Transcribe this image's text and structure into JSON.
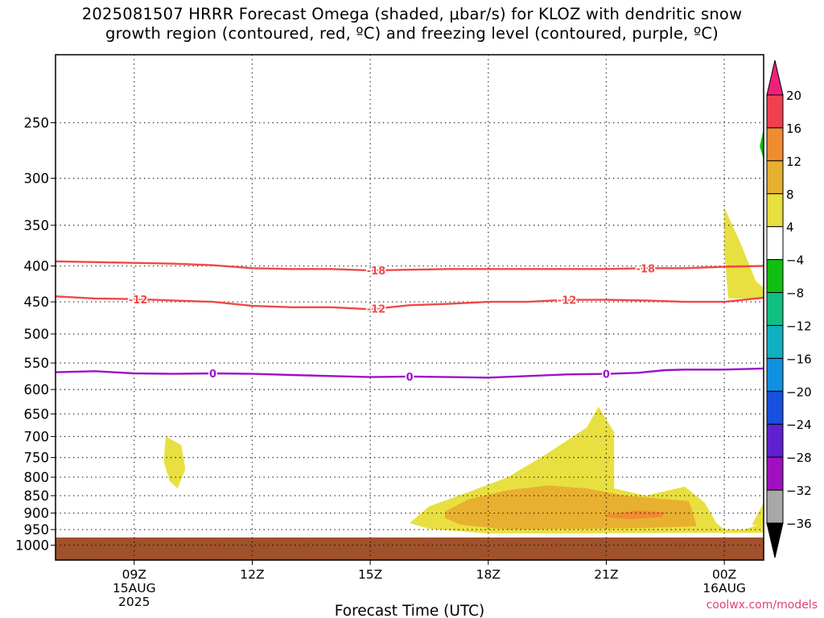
{
  "title": {
    "line1": "2025081507 HRRR Forecast Omega (shaded, μbar/s) for KLOZ with dendritic snow",
    "line2": "growth region (contoured, red, ºC) and freezing level (contoured, purple, ºC)"
  },
  "credit": "coolwx.com/models",
  "chart_data": {
    "type": "contour",
    "xlabel": "Forecast Time (UTC)",
    "x_range_hours": [
      7,
      25
    ],
    "x_ticks": [
      {
        "hour": 9,
        "label": "09Z",
        "sub": [
          "15AUG",
          "2025"
        ]
      },
      {
        "hour": 12,
        "label": "12Z",
        "sub": []
      },
      {
        "hour": 15,
        "label": "15Z",
        "sub": []
      },
      {
        "hour": 18,
        "label": "18Z",
        "sub": []
      },
      {
        "hour": 21,
        "label": "21Z",
        "sub": []
      },
      {
        "hour": 24,
        "label": "00Z",
        "sub": [
          "16AUG"
        ]
      }
    ],
    "y_axis": "pressure (hPa)",
    "y_scale": "log",
    "y_range": [
      1050,
      200
    ],
    "y_ticks": [
      250,
      300,
      350,
      400,
      450,
      500,
      550,
      600,
      650,
      700,
      750,
      800,
      850,
      900,
      950,
      1000
    ],
    "grid": "dotted",
    "ground_color": "#a0522d",
    "ground_top_hpa": 975,
    "colorbar": {
      "levels": [
        20,
        16,
        12,
        8,
        4,
        -4,
        -8,
        -12,
        -16,
        -20,
        -24,
        -28,
        -32,
        -36
      ],
      "colors": [
        "#f0207a",
        "#f04050",
        "#f08c30",
        "#e8b030",
        "#e8e040",
        "#ffffff",
        "#10c010",
        "#10c080",
        "#10b0c0",
        "#1090e0",
        "#1850e0",
        "#6020d0",
        "#a010c0",
        "#a8a8a8",
        "#000000"
      ]
    },
    "contours": [
      {
        "label": "-18",
        "color": "#f04848",
        "points": [
          [
            7,
            394
          ],
          [
            9,
            396
          ],
          [
            10,
            397
          ],
          [
            11,
            399
          ],
          [
            12,
            403
          ],
          [
            13,
            404
          ],
          [
            14,
            404
          ],
          [
            15,
            406
          ],
          [
            16,
            405
          ],
          [
            17,
            404
          ],
          [
            18,
            404
          ],
          [
            19,
            404
          ],
          [
            20,
            404
          ],
          [
            21,
            404
          ],
          [
            22,
            403
          ],
          [
            23,
            403
          ],
          [
            24,
            401
          ],
          [
            25,
            400
          ]
        ],
        "label_hours": [
          15.15,
          22.0
        ]
      },
      {
        "label": "-12",
        "color": "#f04848",
        "points": [
          [
            7,
            442
          ],
          [
            8,
            445
          ],
          [
            9,
            446
          ],
          [
            10,
            448
          ],
          [
            11,
            450
          ],
          [
            12,
            456
          ],
          [
            13,
            458
          ],
          [
            14,
            458
          ],
          [
            15,
            461
          ],
          [
            16,
            455
          ],
          [
            17,
            453
          ],
          [
            18,
            450
          ],
          [
            19,
            450
          ],
          [
            20,
            447
          ],
          [
            21,
            447
          ],
          [
            22,
            448
          ],
          [
            23,
            450
          ],
          [
            24,
            450
          ],
          [
            25,
            444
          ]
        ],
        "label_hours": [
          9.1,
          15.15,
          20.0
        ]
      },
      {
        "label": "0",
        "color": "#9e10c8",
        "points": [
          [
            7,
            567
          ],
          [
            8,
            565
          ],
          [
            9,
            569
          ],
          [
            10,
            570
          ],
          [
            11,
            569
          ],
          [
            12,
            570
          ],
          [
            13,
            572
          ],
          [
            14,
            574
          ],
          [
            15,
            576
          ],
          [
            16,
            575
          ],
          [
            17,
            576
          ],
          [
            18,
            577
          ],
          [
            19,
            574
          ],
          [
            20,
            571
          ],
          [
            21,
            570
          ],
          [
            21.8,
            568
          ],
          [
            22.5,
            563
          ],
          [
            23,
            562
          ],
          [
            24,
            562
          ],
          [
            25,
            560
          ]
        ],
        "label_hours": [
          11.0,
          16.0,
          21.0
        ]
      }
    ],
    "shaded_regions": [
      {
        "color": "#e8e040",
        "points": [
          [
            9.8,
            700
          ],
          [
            10.2,
            720
          ],
          [
            10.3,
            780
          ],
          [
            10.1,
            830
          ],
          [
            9.9,
            810
          ],
          [
            9.75,
            760
          ]
        ]
      },
      {
        "color": "#e8e040",
        "points": [
          [
            16.0,
            930
          ],
          [
            16.5,
            880
          ],
          [
            17.5,
            840
          ],
          [
            18.5,
            800
          ],
          [
            19.5,
            740
          ],
          [
            20.5,
            680
          ],
          [
            20.8,
            635
          ],
          [
            21.2,
            690
          ],
          [
            21.2,
            830
          ],
          [
            22.0,
            850
          ],
          [
            23.0,
            825
          ],
          [
            23.5,
            870
          ],
          [
            23.8,
            930
          ],
          [
            24.0,
            950
          ],
          [
            24.5,
            950
          ],
          [
            25.0,
            930
          ],
          [
            25.0,
            960
          ],
          [
            23.0,
            960
          ],
          [
            20.0,
            962
          ],
          [
            18.0,
            962
          ],
          [
            16.5,
            948
          ]
        ]
      },
      {
        "color": "#e8b030",
        "points": [
          [
            16.9,
            895
          ],
          [
            17.5,
            860
          ],
          [
            18.5,
            835
          ],
          [
            19.5,
            822
          ],
          [
            20.5,
            830
          ],
          [
            21.5,
            850
          ],
          [
            22.5,
            860
          ],
          [
            23.1,
            865
          ],
          [
            23.2,
            900
          ],
          [
            23.3,
            940
          ],
          [
            22.0,
            945
          ],
          [
            20.0,
            948
          ],
          [
            18.5,
            950
          ],
          [
            17.3,
            935
          ],
          [
            16.9,
            915
          ]
        ]
      },
      {
        "color": "#f08c30",
        "points": [
          [
            21.0,
            905
          ],
          [
            21.8,
            892
          ],
          [
            22.5,
            898
          ],
          [
            22.4,
            912
          ],
          [
            21.6,
            918
          ],
          [
            21.0,
            912
          ]
        ]
      },
      {
        "color": "#e8e040",
        "points": [
          [
            24.7,
            935
          ],
          [
            25.0,
            870
          ],
          [
            25.0,
            940
          ]
        ]
      },
      {
        "color": "#e8e040",
        "points": [
          [
            24.0,
            330
          ],
          [
            24.4,
            370
          ],
          [
            24.8,
            420
          ],
          [
            25.0,
            430
          ],
          [
            25.0,
            445
          ],
          [
            24.1,
            445
          ],
          [
            24.0,
            380
          ]
        ]
      },
      {
        "color": "#10c010",
        "points": [
          [
            25.0,
            255
          ],
          [
            24.9,
            270
          ],
          [
            25.0,
            282
          ]
        ]
      }
    ]
  }
}
